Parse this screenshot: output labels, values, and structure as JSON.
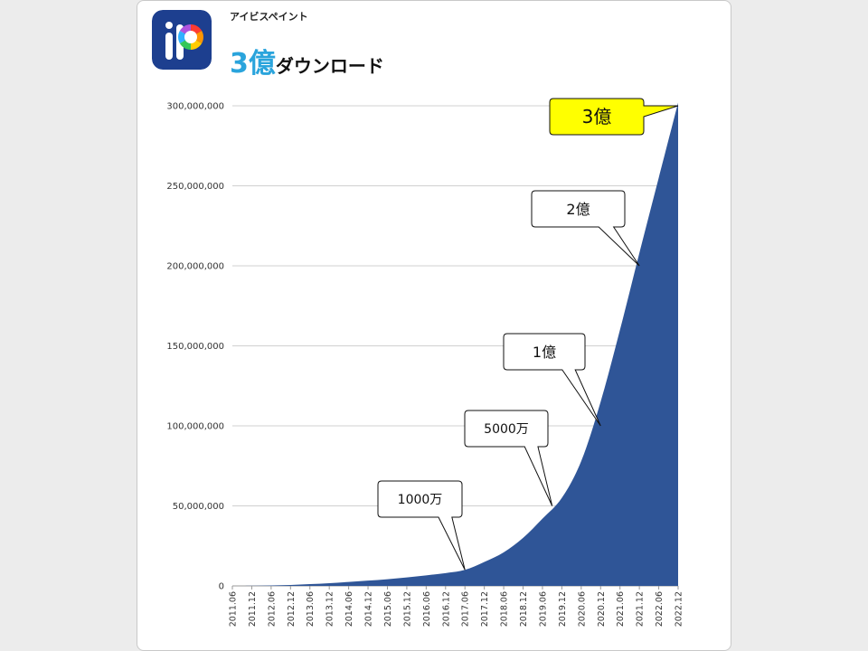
{
  "header": {
    "app_name": "アイビスペイント",
    "headline_number": "3億",
    "headline_text": "ダウンロード",
    "app_icon": "ibis-paint-logo-icon",
    "logo_letter": "iP"
  },
  "colors": {
    "area_fill": "#2f5597",
    "accent": "#2aa4dc",
    "icon_bg": "#1d3f8f",
    "highlight_callout": "#ffff00"
  },
  "chart_data": {
    "type": "area",
    "title": "3億ダウンロード",
    "xlabel": "",
    "ylabel": "",
    "ylim": [
      0,
      300000000
    ],
    "grid": true,
    "yticks": [
      "0",
      "50,000,000",
      "100,000,000",
      "150,000,000",
      "200,000,000",
      "250,000,000",
      "300,000,000"
    ],
    "ytick_values": [
      0,
      50000000,
      100000000,
      150000000,
      200000000,
      250000000,
      300000000
    ],
    "categories": [
      "2011.06",
      "2011.12",
      "2012.06",
      "2012.12",
      "2013.06",
      "2013.12",
      "2014.06",
      "2014.12",
      "2015.06",
      "2015.12",
      "2016.06",
      "2016.12",
      "2017.06",
      "2017.12",
      "2018.06",
      "2018.12",
      "2019.06",
      "2019.12",
      "2020.06",
      "2020.12",
      "2021.06",
      "2021.12",
      "2022.06",
      "2022.12"
    ],
    "values": [
      0,
      100000,
      300000,
      600000,
      1100000,
      1700000,
      2500000,
      3300000,
      4200000,
      5300000,
      6600000,
      8000000,
      10000000,
      15000000,
      21000000,
      30000000,
      42000000,
      55000000,
      78000000,
      115000000,
      160000000,
      208000000,
      255000000,
      302000000
    ],
    "annotations": [
      {
        "label": "1000万",
        "category": "2017.06",
        "value": 10000000,
        "highlight": false
      },
      {
        "label": "5000万",
        "category": "2019.09",
        "value": 50000000,
        "highlight": false
      },
      {
        "label": "1億",
        "category": "2020.12",
        "value": 100000000,
        "highlight": false
      },
      {
        "label": "2億",
        "category": "2021.12",
        "value": 200000000,
        "highlight": false
      },
      {
        "label": "3億",
        "category": "2022.12",
        "value": 300000000,
        "highlight": true
      }
    ]
  }
}
